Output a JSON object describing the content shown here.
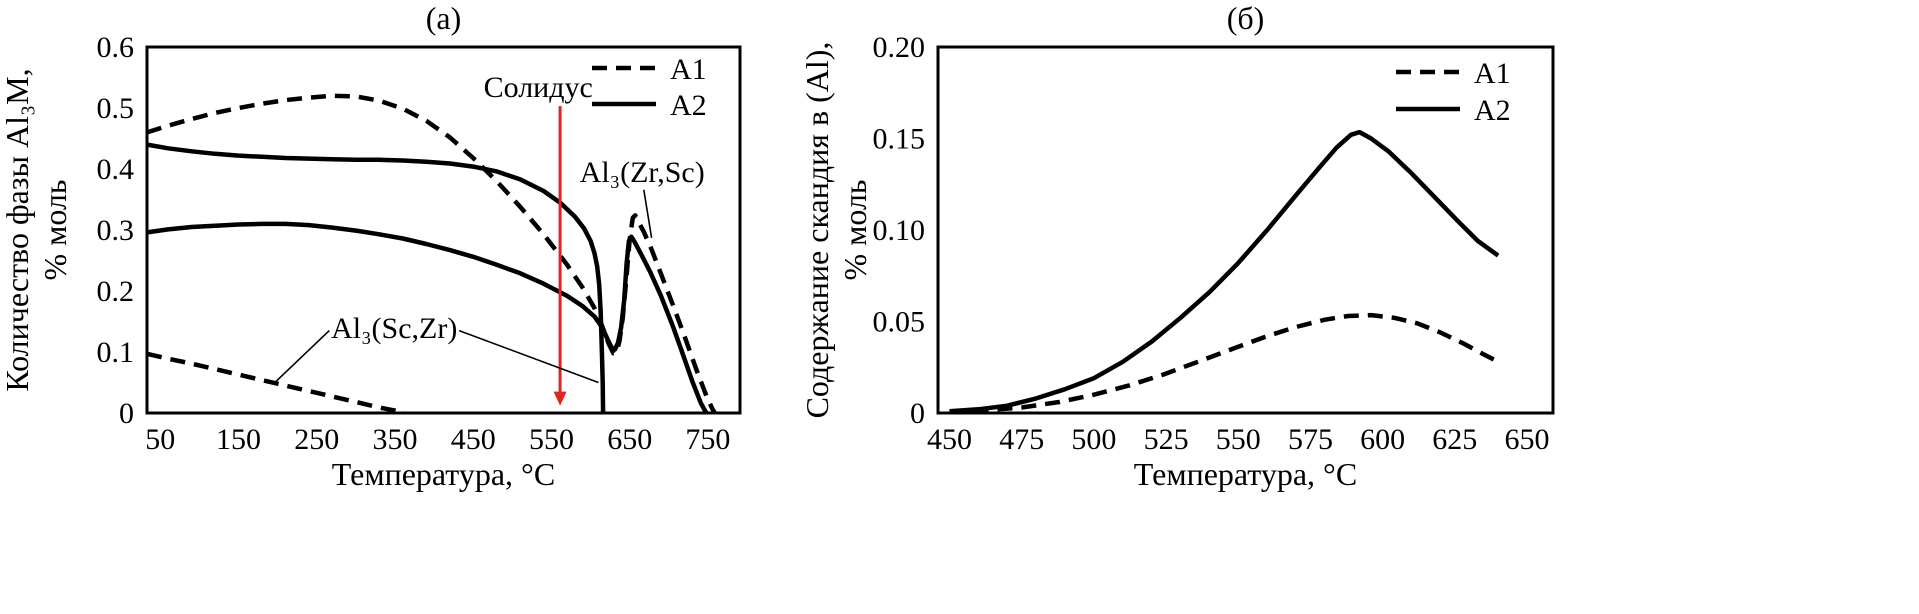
{
  "figure": {
    "background": "#ffffff",
    "curve_color": "#000000"
  },
  "chart_data": [
    {
      "id": "chart-a",
      "type": "line",
      "title": "(а)",
      "xlabel": "Температура, °C",
      "ylabel": "Количество фазы Al₃M,",
      "ylabel2": "% моль",
      "xlim": [
        33,
        791
      ],
      "ylim": [
        0,
        0.6
      ],
      "xticks": [
        50,
        150,
        250,
        350,
        450,
        550,
        650,
        750
      ],
      "yticks": [
        "0",
        "0.1",
        "0.2",
        "0.3",
        "0.4",
        "0.5",
        "0.6"
      ],
      "grid": false,
      "legend_position": "top-right",
      "legend": [
        {
          "label": "A1",
          "dash": true
        },
        {
          "label": "A2",
          "dash": false
        }
      ],
      "series": [
        {
          "name": "A1-Al₃(Zr,Sc)",
          "dash": true,
          "points": [
            [
              33,
              0.46
            ],
            [
              60,
              0.471
            ],
            [
              90,
              0.482
            ],
            [
              120,
              0.492
            ],
            [
              150,
              0.5
            ],
            [
              180,
              0.507
            ],
            [
              210,
              0.513
            ],
            [
              240,
              0.517
            ],
            [
              270,
              0.52
            ],
            [
              300,
              0.519
            ],
            [
              330,
              0.512
            ],
            [
              360,
              0.499
            ],
            [
              390,
              0.479
            ],
            [
              420,
              0.452
            ],
            [
              450,
              0.418
            ],
            [
              480,
              0.38
            ],
            [
              510,
              0.338
            ],
            [
              540,
              0.293
            ],
            [
              570,
              0.243
            ],
            [
              590,
              0.205
            ],
            [
              605,
              0.172
            ],
            [
              615,
              0.142
            ],
            [
              623,
              0.114
            ],
            [
              629,
              0.098
            ],
            [
              633,
              0.099
            ],
            [
              637,
              0.118
            ],
            [
              641,
              0.155
            ],
            [
              645,
              0.21
            ],
            [
              650,
              0.285
            ],
            [
              654,
              0.32
            ],
            [
              657,
              0.324
            ],
            [
              661,
              0.314
            ],
            [
              668,
              0.297
            ],
            [
              678,
              0.268
            ],
            [
              690,
              0.228
            ],
            [
              705,
              0.178
            ],
            [
              720,
              0.126
            ],
            [
              735,
              0.072
            ],
            [
              748,
              0.028
            ],
            [
              756,
              0.006
            ],
            [
              759,
              0.0
            ]
          ]
        },
        {
          "name": "A1-Al₃(Sc,Zr)",
          "dash": true,
          "points": [
            [
              33,
              0.097
            ],
            [
              60,
              0.089
            ],
            [
              90,
              0.081
            ],
            [
              120,
              0.072
            ],
            [
              150,
              0.063
            ],
            [
              180,
              0.054
            ],
            [
              210,
              0.045
            ],
            [
              240,
              0.036
            ],
            [
              270,
              0.027
            ],
            [
              300,
              0.018
            ],
            [
              330,
              0.009
            ],
            [
              350,
              0.004
            ],
            [
              362,
              0.0
            ]
          ]
        },
        {
          "name": "A2-Al₃(Sc,Zr)",
          "dash": false,
          "points": [
            [
              33,
              0.44
            ],
            [
              60,
              0.434
            ],
            [
              90,
              0.429
            ],
            [
              120,
              0.425
            ],
            [
              150,
              0.422
            ],
            [
              180,
              0.42
            ],
            [
              210,
              0.418
            ],
            [
              240,
              0.417
            ],
            [
              270,
              0.416
            ],
            [
              300,
              0.415
            ],
            [
              330,
              0.415
            ],
            [
              360,
              0.414
            ],
            [
              390,
              0.412
            ],
            [
              420,
              0.409
            ],
            [
              450,
              0.404
            ],
            [
              480,
              0.396
            ],
            [
              510,
              0.383
            ],
            [
              540,
              0.364
            ],
            [
              562,
              0.344
            ],
            [
              580,
              0.322
            ],
            [
              592,
              0.302
            ],
            [
              600,
              0.282
            ],
            [
              605,
              0.262
            ],
            [
              608.5,
              0.24
            ],
            [
              611,
              0.21
            ],
            [
              613,
              0.165
            ],
            [
              614.5,
              0.1
            ],
            [
              615.5,
              0.05
            ],
            [
              616,
              0.0
            ]
          ]
        },
        {
          "name": "A2-Al₃(Zr,Sc)",
          "dash": false,
          "points": [
            [
              33,
              0.296
            ],
            [
              60,
              0.301
            ],
            [
              90,
              0.305
            ],
            [
              120,
              0.307
            ],
            [
              150,
              0.309
            ],
            [
              180,
              0.31
            ],
            [
              210,
              0.31
            ],
            [
              240,
              0.308
            ],
            [
              270,
              0.304
            ],
            [
              300,
              0.299
            ],
            [
              330,
              0.293
            ],
            [
              360,
              0.286
            ],
            [
              390,
              0.277
            ],
            [
              420,
              0.267
            ],
            [
              450,
              0.256
            ],
            [
              480,
              0.243
            ],
            [
              510,
              0.229
            ],
            [
              540,
              0.212
            ],
            [
              570,
              0.192
            ],
            [
              590,
              0.175
            ],
            [
              605,
              0.158
            ],
            [
              615,
              0.14
            ],
            [
              622,
              0.12
            ],
            [
              627,
              0.107
            ],
            [
              631,
              0.104
            ],
            [
              635,
              0.115
            ],
            [
              639,
              0.14
            ],
            [
              643,
              0.185
            ],
            [
              646,
              0.245
            ],
            [
              649,
              0.282
            ],
            [
              652,
              0.289
            ],
            [
              656,
              0.281
            ],
            [
              664,
              0.262
            ],
            [
              676,
              0.232
            ],
            [
              690,
              0.192
            ],
            [
              705,
              0.143
            ],
            [
              718,
              0.096
            ],
            [
              730,
              0.052
            ],
            [
              741,
              0.016
            ],
            [
              747,
              0.002
            ],
            [
              749,
              0.0
            ]
          ]
        }
      ],
      "annotations": [
        {
          "id": "solidus",
          "text": "Солидус",
          "x": 533,
          "y": 0.518,
          "arrow": {
            "x": 561,
            "y1": 0.503,
            "y2": 0.012,
            "color": "#e2231a"
          }
        },
        {
          "id": "phase-zr-sc",
          "text": "Al₃(Zr,Sc)",
          "x": 666,
          "y": 0.379,
          "pointers": [
            [
              668,
              0.366,
              678,
              0.287
            ]
          ]
        },
        {
          "id": "phase-sc-zr",
          "text": "Al₃(Sc,Zr)",
          "x": 349,
          "y": 0.123,
          "pointers": [
            [
              432,
              0.135,
              610,
              0.05
            ],
            [
              266,
              0.135,
              198,
              0.052
            ]
          ]
        }
      ]
    },
    {
      "id": "chart-b",
      "type": "line",
      "title": "(б)",
      "xlabel": "Температура, °C",
      "ylabel": "Содержание скандия в (Al),",
      "ylabel2": "% моль",
      "xlim": [
        446,
        659
      ],
      "ylim": [
        0,
        0.2
      ],
      "xticks": [
        450,
        475,
        500,
        525,
        550,
        575,
        600,
        625,
        650
      ],
      "yticks": [
        "0",
        "0.05",
        "0.10",
        "0.15",
        "0.20"
      ],
      "grid": false,
      "legend_position": "top-right",
      "legend": [
        {
          "label": "A1",
          "dash": true
        },
        {
          "label": "A2",
          "dash": false
        }
      ],
      "series": [
        {
          "name": "A1-Sc-in-Al",
          "dash": true,
          "points": [
            [
              450,
              0.0005
            ],
            [
              462,
              0.0015
            ],
            [
              475,
              0.003
            ],
            [
              488,
              0.006
            ],
            [
              500,
              0.01
            ],
            [
              512,
              0.015
            ],
            [
              524,
              0.021
            ],
            [
              536,
              0.028
            ],
            [
              548,
              0.035
            ],
            [
              560,
              0.042
            ],
            [
              570,
              0.047
            ],
            [
              580,
              0.051
            ],
            [
              588,
              0.053
            ],
            [
              596,
              0.0535
            ],
            [
              604,
              0.052
            ],
            [
              612,
              0.049
            ],
            [
              620,
              0.044
            ],
            [
              628,
              0.038
            ],
            [
              635,
              0.032
            ],
            [
              640,
              0.028
            ]
          ]
        },
        {
          "name": "A2-Sc-in-Al",
          "dash": false,
          "points": [
            [
              450,
              0.001
            ],
            [
              460,
              0.002
            ],
            [
              470,
              0.004
            ],
            [
              480,
              0.008
            ],
            [
              490,
              0.013
            ],
            [
              500,
              0.019
            ],
            [
              510,
              0.028
            ],
            [
              520,
              0.039
            ],
            [
              530,
              0.052
            ],
            [
              540,
              0.066
            ],
            [
              550,
              0.082
            ],
            [
              560,
              0.1
            ],
            [
              570,
              0.119
            ],
            [
              578,
              0.134
            ],
            [
              584,
              0.145
            ],
            [
              589,
              0.152
            ],
            [
              592,
              0.1535
            ],
            [
              596,
              0.15
            ],
            [
              602,
              0.143
            ],
            [
              610,
              0.131
            ],
            [
              618,
              0.118
            ],
            [
              626,
              0.105
            ],
            [
              633,
              0.094
            ],
            [
              640,
              0.086
            ]
          ]
        }
      ],
      "annotations": []
    }
  ]
}
